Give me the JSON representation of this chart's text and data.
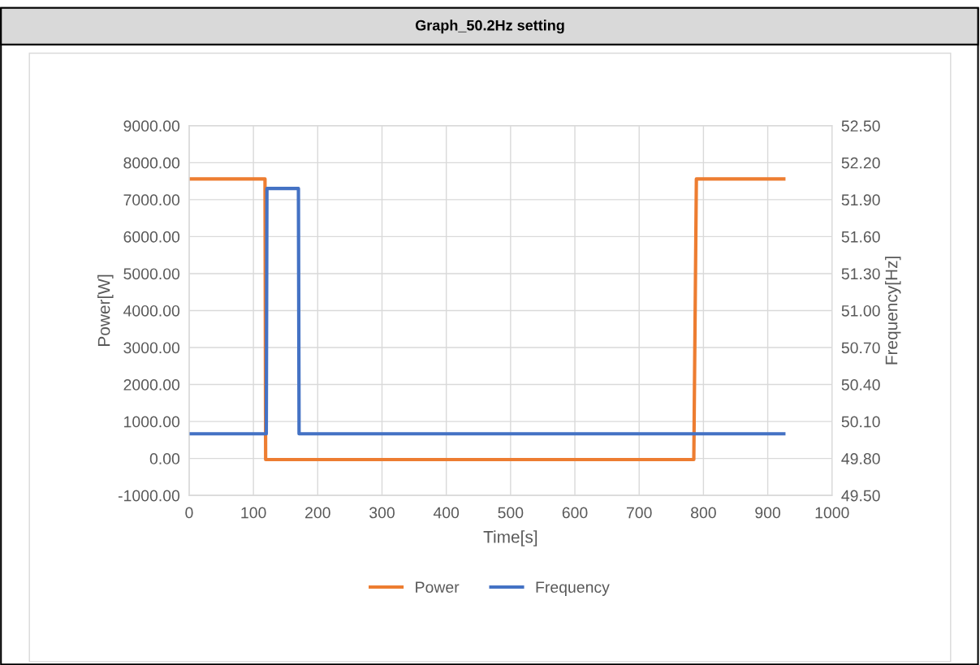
{
  "chart_data": {
    "type": "line",
    "title": "Graph_50.2Hz setting",
    "xlabel": "Time[s]",
    "ylabel": "Power[W]",
    "y2label": "Frequency[Hz]",
    "series": [
      {
        "name": "Power",
        "color": "#ed7d31",
        "x": [
          0,
          118,
          119,
          785,
          789,
          925
        ],
        "values": [
          7560,
          7560,
          -30,
          -30,
          7560,
          7560
        ]
      },
      {
        "name": "Frequency",
        "color": "#4472c4",
        "axis": "y2",
        "x": [
          0,
          120,
          121,
          170,
          171,
          925
        ],
        "values": [
          50.0,
          50.0,
          51.99,
          51.99,
          50.0,
          50.0
        ]
      }
    ],
    "xlim": [
      0,
      1000
    ],
    "xticks": [
      0,
      100,
      200,
      300,
      400,
      500,
      600,
      700,
      800,
      900,
      1000
    ],
    "ylim": [
      -1000,
      9000
    ],
    "yticks": [
      {
        "value": -1000,
        "label": "-1000.00"
      },
      {
        "value": 0,
        "label": "0.00"
      },
      {
        "value": 1000,
        "label": "1000.00"
      },
      {
        "value": 2000,
        "label": "2000.00"
      },
      {
        "value": 3000,
        "label": "3000.00"
      },
      {
        "value": 4000,
        "label": "4000.00"
      },
      {
        "value": 5000,
        "label": "5000.00"
      },
      {
        "value": 6000,
        "label": "6000.00"
      },
      {
        "value": 7000,
        "label": "7000.00"
      },
      {
        "value": 8000,
        "label": "8000.00"
      },
      {
        "value": 9000,
        "label": "9000.00"
      }
    ],
    "y2lim": [
      49.5,
      52.5
    ],
    "y2ticks": [
      {
        "value": 49.5,
        "label": "49.50"
      },
      {
        "value": 49.8,
        "label": "49.80"
      },
      {
        "value": 50.1,
        "label": "50.10"
      },
      {
        "value": 50.4,
        "label": "50.40"
      },
      {
        "value": 50.7,
        "label": "50.70"
      },
      {
        "value": 51.0,
        "label": "51.00"
      },
      {
        "value": 51.3,
        "label": "51.30"
      },
      {
        "value": 51.6,
        "label": "51.60"
      },
      {
        "value": 51.9,
        "label": "51.90"
      },
      {
        "value": 52.2,
        "label": "52.20"
      },
      {
        "value": 52.5,
        "label": "52.50"
      }
    ],
    "grid": true,
    "legend": "bottom",
    "line_style": "solid",
    "marker": "none"
  }
}
